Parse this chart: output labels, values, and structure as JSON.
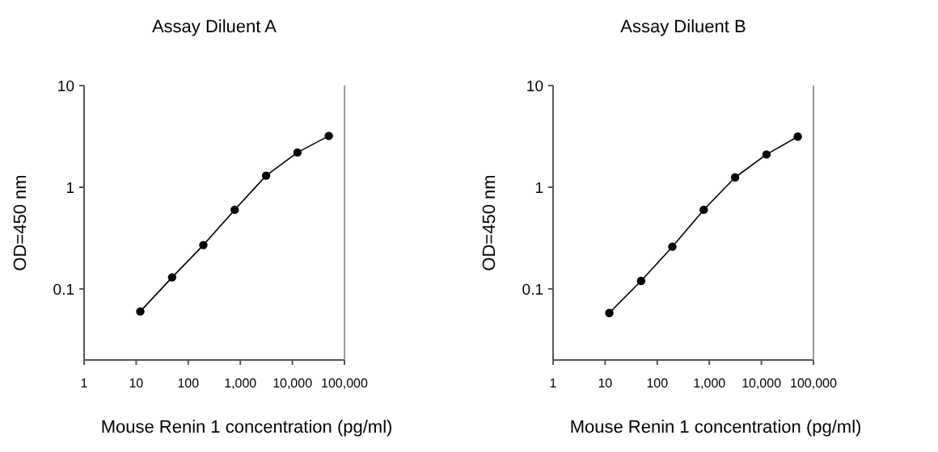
{
  "chart_data": [
    {
      "type": "line",
      "title": "Assay Diluent A",
      "xlabel": "Mouse Renin 1 concentration (pg/ml)",
      "ylabel": "OD=450 nm",
      "log": "xy",
      "marker": "circle",
      "line_style": "solid",
      "x": [
        12,
        49,
        195,
        780,
        3125,
        12500,
        50000
      ],
      "series": [
        {
          "color": "#000000",
          "values": [
            0.06,
            0.13,
            0.27,
            0.6,
            1.3,
            2.2,
            3.2
          ]
        }
      ],
      "xlim": [
        1,
        100000
      ],
      "xticks": [
        1,
        10,
        100,
        {
          "value": 1000,
          "label": "1,000"
        },
        {
          "value": 10000,
          "label": "10,000"
        },
        {
          "value": 100000,
          "label": "100,000"
        }
      ],
      "ylim": [
        0.02,
        10
      ],
      "yticks": [
        0.1,
        1,
        10
      ]
    },
    {
      "type": "line",
      "title": "Assay Diluent B",
      "xlabel": "Mouse Renin 1 concentration (pg/ml)",
      "ylabel": "OD=450 nm",
      "log": "xy",
      "marker": "circle",
      "line_style": "solid",
      "x": [
        12,
        49,
        195,
        780,
        3125,
        12500,
        50000
      ],
      "series": [
        {
          "color": "#000000",
          "values": [
            0.058,
            0.12,
            0.26,
            0.6,
            1.25,
            2.1,
            3.15
          ]
        }
      ],
      "xlim": [
        1,
        100000
      ],
      "xticks": [
        1,
        10,
        100,
        {
          "value": 1000,
          "label": "1,000"
        },
        {
          "value": 10000,
          "label": "10,000"
        },
        {
          "value": 100000,
          "label": "100,000"
        }
      ],
      "ylim": [
        0.02,
        10
      ],
      "yticks": [
        0.1,
        1,
        10
      ]
    }
  ]
}
